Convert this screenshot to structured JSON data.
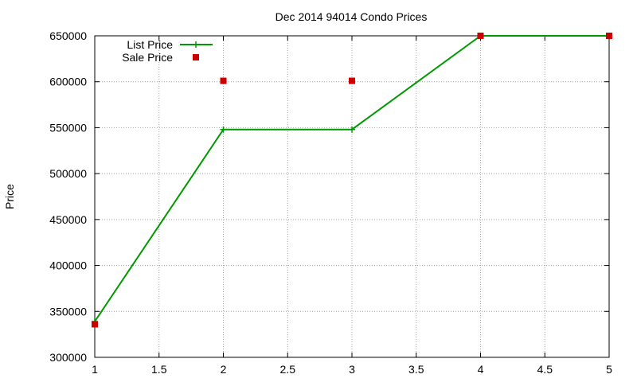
{
  "chart_data": {
    "type": "line",
    "title": "Dec 2014 94014 Condo Prices",
    "xlabel": "",
    "ylabel": "Price",
    "xlim": [
      1,
      5
    ],
    "ylim": [
      300000,
      650000
    ],
    "x_ticks": [
      "1",
      "1.5",
      "2",
      "2.5",
      "3",
      "3.5",
      "4",
      "4.5",
      "5"
    ],
    "y_ticks": [
      "300000",
      "350000",
      "400000",
      "450000",
      "500000",
      "550000",
      "600000",
      "650000"
    ],
    "grid": true,
    "legend_position": "top-left",
    "series": [
      {
        "name": "List Price",
        "style": "line-with-plus-markers",
        "color": "#009900",
        "x": [
          1,
          2,
          3,
          4,
          5
        ],
        "y": [
          339000,
          548000,
          548000,
          650000,
          650000
        ]
      },
      {
        "name": "Sale Price",
        "style": "square-markers",
        "color": "#cc0000",
        "x": [
          1,
          2,
          3,
          4,
          5
        ],
        "y": [
          336000,
          601000,
          601000,
          650000,
          650000
        ]
      }
    ]
  }
}
